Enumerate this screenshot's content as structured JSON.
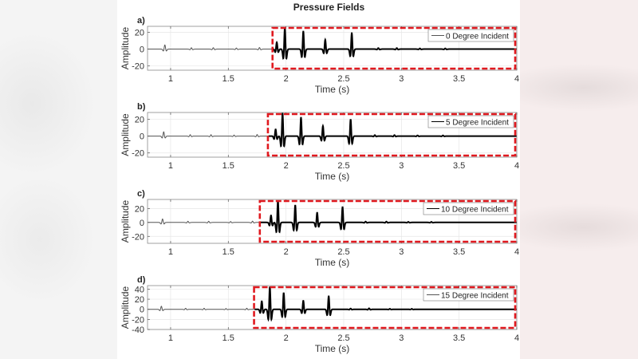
{
  "figure": {
    "title": "Pressure Fields",
    "background": "#ffffff",
    "highlight_color": "#e0191f"
  },
  "chart_data": [
    {
      "type": "line",
      "panel_label": "a)",
      "title": "",
      "xlabel": "Time (s)",
      "ylabel": "Amplitude",
      "xlim": [
        0.8,
        4
      ],
      "ylim": [
        -25,
        27
      ],
      "xticks": [
        1,
        1.5,
        2,
        2.5,
        3,
        3.5,
        4
      ],
      "xtick_labels": [
        "1",
        "1.5",
        "2",
        "2.5",
        "3",
        "3.5",
        "4"
      ],
      "yticks": [
        -20,
        0,
        20
      ],
      "ytick_labels": [
        "-20",
        "0",
        "20"
      ],
      "grid": true,
      "legend": "0 Degree Incident",
      "legend_position": "northeast",
      "highlight_box": {
        "x_start": 1.89,
        "x_end": 4.0
      },
      "events": [
        {
          "t": 0.95,
          "amp": 5
        },
        {
          "t": 1.18,
          "amp": 1.6
        },
        {
          "t": 1.37,
          "amp": 1.6
        },
        {
          "t": 1.57,
          "amp": 1.2
        },
        {
          "t": 1.77,
          "amp": 1.8
        },
        {
          "t": 1.92,
          "amp": 8
        },
        {
          "t": 1.99,
          "amp": 25
        },
        {
          "t": 2.15,
          "amp": 21
        },
        {
          "t": 2.34,
          "amp": 11
        },
        {
          "t": 2.57,
          "amp": 19
        },
        {
          "t": 2.8,
          "amp": 1.2
        },
        {
          "t": 2.96,
          "amp": 1.2
        },
        {
          "t": 3.16,
          "amp": 0.8
        },
        {
          "t": 3.38,
          "amp": 0.8
        }
      ]
    },
    {
      "type": "line",
      "panel_label": "b)",
      "title": "",
      "xlabel": "Time (s)",
      "ylabel": "Amplitude",
      "xlim": [
        0.8,
        4
      ],
      "ylim": [
        -25,
        28
      ],
      "xticks": [
        1,
        1.5,
        2,
        2.5,
        3,
        3.5,
        4
      ],
      "xtick_labels": [
        "1",
        "1.5",
        "2",
        "2.5",
        "3",
        "3.5",
        "4"
      ],
      "yticks": [
        -20,
        0,
        20
      ],
      "ytick_labels": [
        "-20",
        "0",
        "20"
      ],
      "grid": true,
      "legend": "5 Degree Incident",
      "legend_position": "northeast",
      "highlight_box": {
        "x_start": 1.85,
        "x_end": 4.0
      },
      "events": [
        {
          "t": 0.94,
          "amp": 5
        },
        {
          "t": 1.17,
          "amp": 1.6
        },
        {
          "t": 1.35,
          "amp": 1.6
        },
        {
          "t": 1.55,
          "amp": 1.2
        },
        {
          "t": 1.75,
          "amp": 1.8
        },
        {
          "t": 1.91,
          "amp": 8
        },
        {
          "t": 1.97,
          "amp": 27
        },
        {
          "t": 2.13,
          "amp": 22
        },
        {
          "t": 2.32,
          "amp": 12
        },
        {
          "t": 2.56,
          "amp": 20
        },
        {
          "t": 2.77,
          "amp": 1.2
        },
        {
          "t": 2.94,
          "amp": 1.2
        },
        {
          "t": 3.14,
          "amp": 0.8
        },
        {
          "t": 3.36,
          "amp": 0.8
        }
      ]
    },
    {
      "type": "line",
      "panel_label": "c)",
      "title": "",
      "xlabel": "Time (s)",
      "ylabel": "Amplitude",
      "xlim": [
        0.8,
        4
      ],
      "ylim": [
        -30,
        33
      ],
      "xticks": [
        1,
        1.5,
        2,
        2.5,
        3,
        3.5,
        4
      ],
      "xtick_labels": [
        "1",
        "1.5",
        "2",
        "2.5",
        "3",
        "3.5",
        "4"
      ],
      "yticks": [
        -20,
        0,
        20
      ],
      "ytick_labels": [
        "-20",
        "0",
        "20"
      ],
      "grid": true,
      "legend": "10 Degree Incident",
      "legend_position": "northeast",
      "highlight_box": {
        "x_start": 1.78,
        "x_end": 4.0
      },
      "events": [
        {
          "t": 0.93,
          "amp": 5
        },
        {
          "t": 1.15,
          "amp": 1.6
        },
        {
          "t": 1.33,
          "amp": 1.6
        },
        {
          "t": 1.52,
          "amp": 1.2
        },
        {
          "t": 1.71,
          "amp": 1.8
        },
        {
          "t": 1.87,
          "amp": 10
        },
        {
          "t": 1.93,
          "amp": 31
        },
        {
          "t": 2.08,
          "amp": 25
        },
        {
          "t": 2.27,
          "amp": 14
        },
        {
          "t": 2.49,
          "amp": 22
        },
        {
          "t": 2.69,
          "amp": 1.2
        },
        {
          "t": 2.87,
          "amp": 1.2
        },
        {
          "t": 3.06,
          "amp": 0.8
        },
        {
          "t": 3.26,
          "amp": 0.8
        }
      ]
    },
    {
      "type": "line",
      "panel_label": "d)",
      "title": "",
      "xlabel": "Time (s)",
      "ylabel": "Amplitude",
      "xlim": [
        0.8,
        4
      ],
      "ylim": [
        -40,
        47
      ],
      "xticks": [
        1,
        1.5,
        2,
        2.5,
        3,
        3.5,
        4
      ],
      "xtick_labels": [
        "1",
        "1.5",
        "2",
        "2.5",
        "3",
        "3.5",
        "4"
      ],
      "yticks": [
        -40,
        -20,
        0,
        20,
        40
      ],
      "ytick_labels": [
        "-40",
        "-20",
        "0",
        "20",
        "40"
      ],
      "grid": true,
      "legend": "15 Degree Incident",
      "legend_position": "northeast",
      "highlight_box": {
        "x_start": 1.73,
        "x_end": 4.0
      },
      "events": [
        {
          "t": 0.92,
          "amp": 6
        },
        {
          "t": 1.13,
          "amp": 2
        },
        {
          "t": 1.29,
          "amp": 2
        },
        {
          "t": 1.48,
          "amp": 1.5
        },
        {
          "t": 1.66,
          "amp": 2
        },
        {
          "t": 1.79,
          "amp": 16
        },
        {
          "t": 1.86,
          "amp": 45
        },
        {
          "t": 1.98,
          "amp": 33
        },
        {
          "t": 2.15,
          "amp": 17
        },
        {
          "t": 2.37,
          "amp": 26
        },
        {
          "t": 2.56,
          "amp": 1.5
        },
        {
          "t": 2.72,
          "amp": 2
        },
        {
          "t": 2.9,
          "amp": 1
        },
        {
          "t": 3.09,
          "amp": 1
        }
      ]
    }
  ]
}
